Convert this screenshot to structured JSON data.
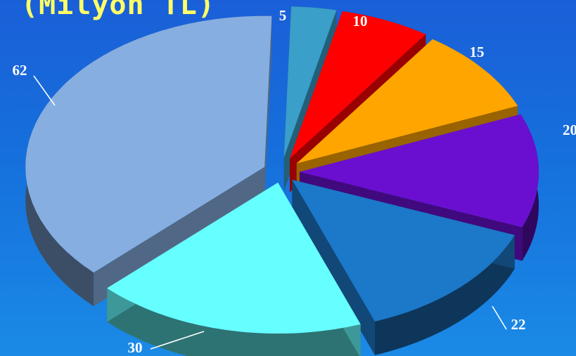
{
  "chart_data": {
    "type": "pie",
    "title": "(Milyon TL)",
    "values": [
      5,
      10,
      15,
      20,
      22,
      30,
      62
    ],
    "labels": [
      "5",
      "10",
      "15",
      "20",
      "22",
      "30",
      "62"
    ],
    "colors": [
      "#3a9fc9",
      "#ff0000",
      "#ffa500",
      "#6a0fd0",
      "#1c78c8",
      "#66ffff",
      "#86aee0"
    ],
    "exploded": true,
    "three_d": true
  }
}
